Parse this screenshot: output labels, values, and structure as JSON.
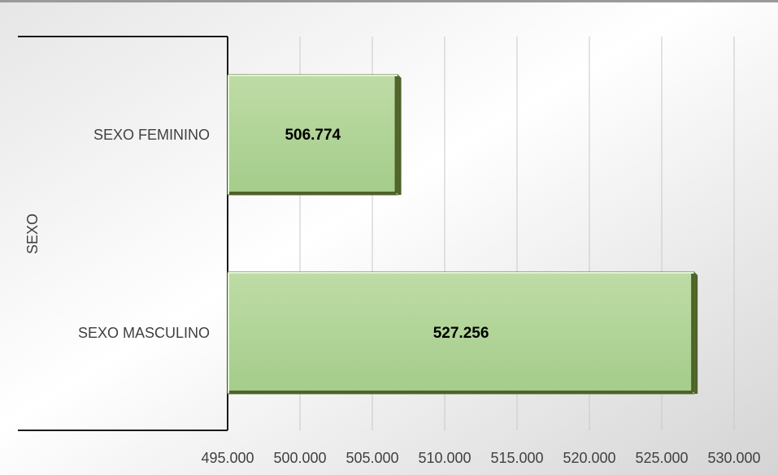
{
  "chart_data": {
    "type": "bar",
    "orientation": "horizontal",
    "categories": [
      "SEXO FEMININO",
      "SEXO MASCULINO"
    ],
    "values": [
      506774,
      527256
    ],
    "value_labels": [
      "506.774",
      "527.256"
    ],
    "group_label": "SEXO",
    "xlim": [
      495000,
      530000
    ],
    "x_ticks": [
      495000,
      500000,
      505000,
      510000,
      515000,
      520000,
      525000,
      530000
    ],
    "x_tick_labels": [
      "495.000",
      "500.000",
      "505.000",
      "510.000",
      "515.000",
      "520.000",
      "525.000",
      "530.000"
    ],
    "grid": "vertical",
    "legend": "none",
    "colors": {
      "bar_fill": "#a9d18e",
      "bar_fill_light": "#c6e0b4",
      "bar_edge": "#4f6228",
      "gridline": "#c8c8c8",
      "axis": "#1a1a1a",
      "text": "#404040",
      "label_text": "#000000",
      "bg_light": "#ffffff",
      "bg_dark": "#d9d9d9"
    }
  }
}
